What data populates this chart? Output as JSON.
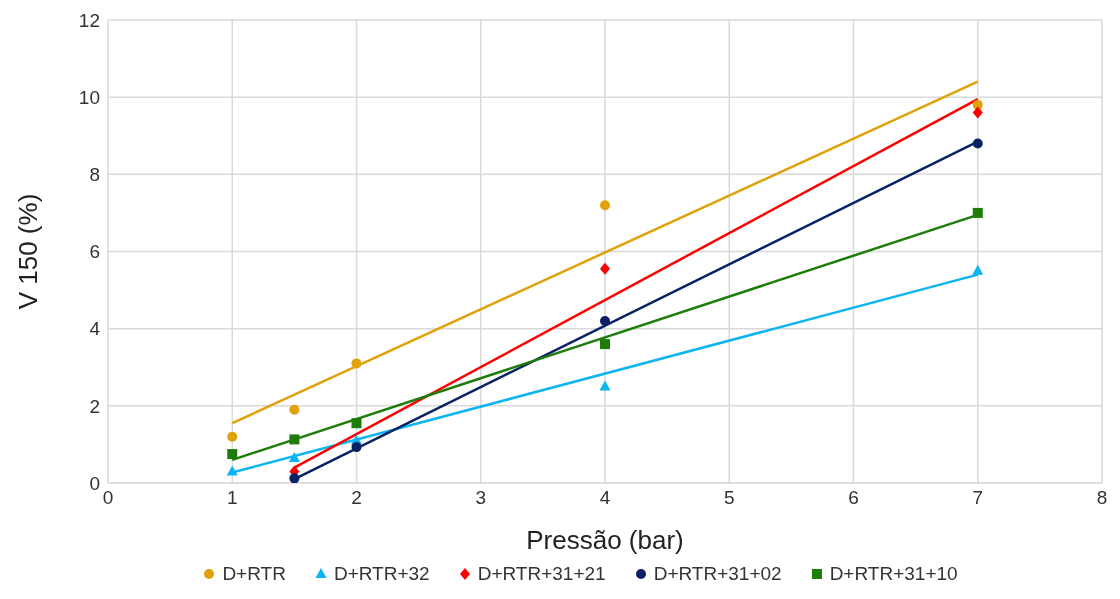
{
  "chart_data": {
    "type": "scatter",
    "xlabel": "Pressão (bar)",
    "ylabel": "V 150 (%)",
    "xlim": [
      0,
      8
    ],
    "xticks": [
      0,
      1,
      2,
      3,
      4,
      5,
      6,
      7,
      8
    ],
    "ylim": [
      0,
      12
    ],
    "yticks": [
      0,
      2,
      4,
      6,
      8,
      10,
      12
    ],
    "grid": true,
    "legend": "bottom",
    "series": [
      {
        "name": "D+RTR",
        "color": "#e0a10b",
        "marker": "circle",
        "x": [
          1,
          1.5,
          2,
          4,
          7
        ],
        "values": [
          1.2,
          1.9,
          3.1,
          7.2,
          9.8
        ]
      },
      {
        "name": "D+RTR+32",
        "color": "#0cb4f0",
        "marker": "triangle",
        "x": [
          1,
          1.5,
          2,
          4,
          7
        ],
        "values": [
          0.3,
          0.65,
          1.1,
          2.5,
          5.5
        ]
      },
      {
        "name": "D+RTR+31+21",
        "color": "#ff0000",
        "marker": "diamond",
        "x": [
          1.5,
          2,
          4,
          7
        ],
        "values": [
          0.3,
          null,
          5.55,
          9.6
        ]
      },
      {
        "name": "D+RTR+31+02",
        "color": "#0a2265",
        "marker": "circle",
        "x": [
          1.5,
          2,
          4,
          7
        ],
        "values": [
          0.12,
          0.93,
          4.2,
          8.8
        ]
      },
      {
        "name": "D+RTR+31+10",
        "color": "#1e7d0a",
        "marker": "square",
        "x": [
          1,
          1.5,
          2,
          4,
          7
        ],
        "values": [
          0.75,
          1.13,
          1.55,
          3.6,
          7.0
        ]
      },
      {
        "type": "line",
        "color": "#e0a10b",
        "marker": "none",
        "x": [
          1,
          7
        ],
        "values": [
          1.55,
          10.4
        ]
      },
      {
        "type": "line",
        "color": "#0cb4f0",
        "marker": "none",
        "x": [
          1,
          7
        ],
        "values": [
          0.27,
          5.4
        ]
      },
      {
        "type": "line",
        "color": "#ff0000",
        "marker": "none",
        "x": [
          1.5,
          7
        ],
        "values": [
          0.4,
          9.95
        ]
      },
      {
        "type": "line",
        "color": "#0a2265",
        "marker": "none",
        "x": [
          1.5,
          7
        ],
        "values": [
          0.1,
          8.85
        ]
      },
      {
        "type": "line",
        "color": "#1e7d0a",
        "marker": "none",
        "x": [
          1,
          7
        ],
        "values": [
          0.6,
          6.95
        ]
      }
    ]
  }
}
